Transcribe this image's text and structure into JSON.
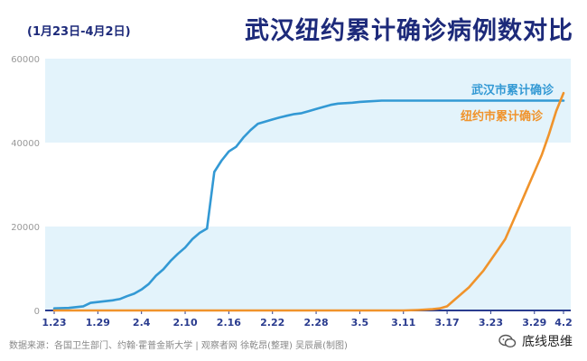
{
  "header": {
    "subtitle": "(1月23日-4月2日)",
    "title": "武汉纽约累计确诊病例数对比"
  },
  "footer": {
    "source": "数据来源：各国卫生部门、约翰·霍普金斯大学 | 观察者网 徐乾昂(整理) 吴辰晨(制图)",
    "brand": "底线思维"
  },
  "colors": {
    "title": "#1d2a7a",
    "band": "#e3f3fb",
    "wuhan": "#3399d4",
    "newyork": "#f0932b",
    "axis": "#2a3c8f",
    "tick": "#999999"
  },
  "chart_data": {
    "type": "line",
    "title": "武汉纽约累计确诊病例数对比",
    "subtitle": "(1月23日-4月2日)",
    "xlabel": "",
    "ylabel": "",
    "ylim": [
      0,
      60000
    ],
    "yticks": [
      0,
      20000,
      40000,
      60000
    ],
    "x_tick_labels": [
      "1.23",
      "1.29",
      "2.4",
      "2.10",
      "2.16",
      "2.22",
      "2.28",
      "3.5",
      "3.11",
      "3.17",
      "3.23",
      "3.29",
      "4.2"
    ],
    "x_tick_days": [
      0,
      6,
      12,
      18,
      24,
      30,
      36,
      42,
      48,
      54,
      60,
      66,
      70
    ],
    "x_range_days": [
      0,
      70
    ],
    "grid": "alternating horizontal bands",
    "legend": "inline labels at right",
    "series": [
      {
        "name": "武汉市累计确诊",
        "color": "#3399d4",
        "points": [
          [
            0,
            500
          ],
          [
            2,
            600
          ],
          [
            4,
            1000
          ],
          [
            5,
            1800
          ],
          [
            8,
            2400
          ],
          [
            9,
            2700
          ],
          [
            10,
            3400
          ],
          [
            11,
            4000
          ],
          [
            12,
            5000
          ],
          [
            13,
            6300
          ],
          [
            14,
            8300
          ],
          [
            15,
            9800
          ],
          [
            16,
            11800
          ],
          [
            17,
            13500
          ],
          [
            18,
            15000
          ],
          [
            19,
            17000
          ],
          [
            20,
            18500
          ],
          [
            21,
            19500
          ],
          [
            22,
            33000
          ],
          [
            23,
            35700
          ],
          [
            24,
            37900
          ],
          [
            25,
            39000
          ],
          [
            26,
            41200
          ],
          [
            27,
            43000
          ],
          [
            28,
            44500
          ],
          [
            29,
            45000
          ],
          [
            30,
            45500
          ],
          [
            31,
            46000
          ],
          [
            32,
            46400
          ],
          [
            33,
            46800
          ],
          [
            34,
            47000
          ],
          [
            35,
            47500
          ],
          [
            36,
            48000
          ],
          [
            37,
            48500
          ],
          [
            38,
            49000
          ],
          [
            39,
            49300
          ],
          [
            40,
            49400
          ],
          [
            41,
            49500
          ],
          [
            42,
            49700
          ],
          [
            43,
            49800
          ],
          [
            45,
            50000
          ],
          [
            48,
            50000
          ],
          [
            55,
            50000
          ],
          [
            62,
            50000
          ],
          [
            70,
            50000
          ]
        ]
      },
      {
        "name": "纽约市累计确诊",
        "color": "#f0932b",
        "points": [
          [
            0,
            0
          ],
          [
            40,
            0
          ],
          [
            48,
            0
          ],
          [
            50,
            100
          ],
          [
            51,
            200
          ],
          [
            52,
            300
          ],
          [
            53,
            500
          ],
          [
            54,
            1000
          ],
          [
            55,
            2500
          ],
          [
            56,
            4000
          ],
          [
            57,
            5500
          ],
          [
            58,
            7500
          ],
          [
            59,
            9500
          ],
          [
            60,
            12000
          ],
          [
            61,
            14500
          ],
          [
            62,
            17000
          ],
          [
            63,
            21000
          ],
          [
            64,
            25000
          ],
          [
            65,
            29000
          ],
          [
            66,
            33000
          ],
          [
            67,
            37000
          ],
          [
            68,
            42000
          ],
          [
            69,
            47500
          ],
          [
            70,
            51800
          ]
        ]
      }
    ]
  }
}
